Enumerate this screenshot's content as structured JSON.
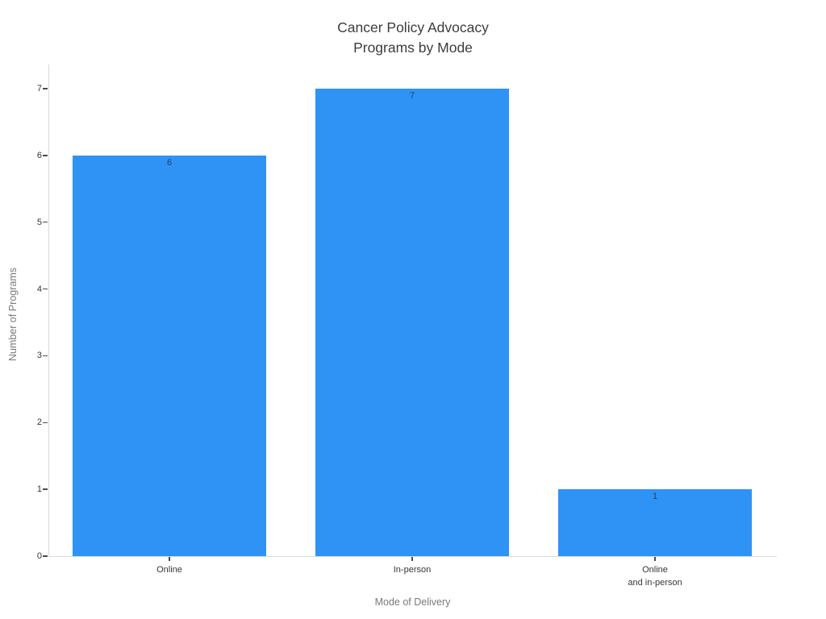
{
  "chart_data": {
    "type": "bar",
    "title": "Cancer Policy Advocacy\nPrograms by Mode",
    "xlabel": "Mode of Delivery",
    "ylabel": "Number of Programs",
    "categories": [
      "Online",
      "In-person",
      "Online\nand in-person"
    ],
    "values": [
      6,
      7,
      1
    ],
    "bar_labels": [
      "6",
      "7",
      "1"
    ],
    "bar_label_position": "inside-top",
    "ylim": [
      0,
      7
    ],
    "yticks": [
      0,
      1,
      2,
      3,
      4,
      5,
      6,
      7
    ],
    "grid": false,
    "legend": "none",
    "colors": {
      "bar": "#2e93f5",
      "bar_label": "#2a3f5f",
      "title": "#3d3d3d",
      "axis_title": "#7a7a7a",
      "tick_label": "#363636",
      "tick_mark": "#4a4a4a",
      "spine": "#d9d9d9",
      "background": "#ffffff"
    }
  }
}
